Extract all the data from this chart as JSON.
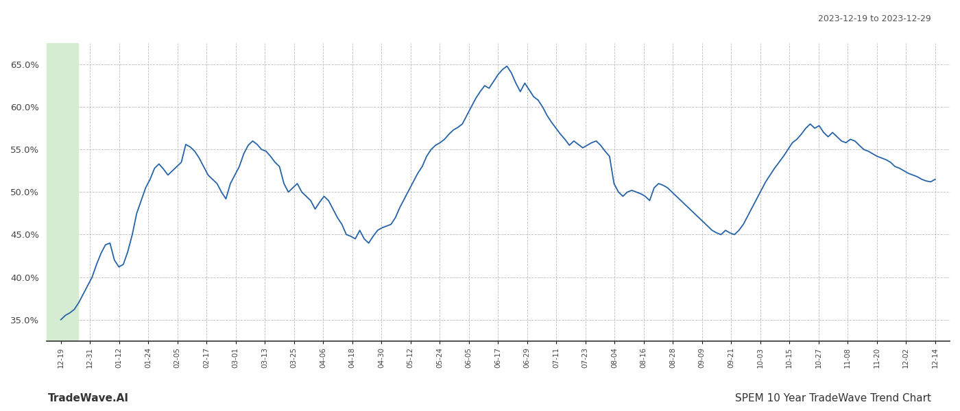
{
  "title_right": "2023-12-19 to 2023-12-29",
  "footer_left": "TradeWave.AI",
  "footer_right": "SPEM 10 Year TradeWave Trend Chart",
  "ylim": [
    0.325,
    0.675
  ],
  "yticks": [
    0.35,
    0.4,
    0.45,
    0.5,
    0.55,
    0.6,
    0.65
  ],
  "line_color": "#2563a8",
  "highlight_color": "#d6ecd2",
  "grid_color": "#bbbbbb",
  "background_color": "#ffffff",
  "x_labels": [
    "12-19",
    "12-31",
    "01-12",
    "01-24",
    "02-05",
    "02-17",
    "03-01",
    "03-13",
    "03-25",
    "04-06",
    "04-18",
    "04-30",
    "05-12",
    "05-24",
    "06-05",
    "06-17",
    "06-29",
    "07-11",
    "07-23",
    "08-04",
    "08-16",
    "08-28",
    "09-09",
    "09-21",
    "10-03",
    "10-15",
    "10-27",
    "11-08",
    "11-20",
    "12-02",
    "12-14"
  ],
  "values": [
    0.35,
    0.355,
    0.358,
    0.362,
    0.37,
    0.38,
    0.39,
    0.4,
    0.415,
    0.428,
    0.438,
    0.44,
    0.42,
    0.412,
    0.415,
    0.43,
    0.45,
    0.475,
    0.49,
    0.505,
    0.515,
    0.528,
    0.533,
    0.527,
    0.52,
    0.525,
    0.53,
    0.535,
    0.556,
    0.553,
    0.548,
    0.54,
    0.53,
    0.52,
    0.515,
    0.51,
    0.5,
    0.492,
    0.51,
    0.52,
    0.53,
    0.545,
    0.555,
    0.56,
    0.556,
    0.55,
    0.548,
    0.542,
    0.535,
    0.53,
    0.51,
    0.5,
    0.505,
    0.51,
    0.5,
    0.495,
    0.49,
    0.48,
    0.488,
    0.495,
    0.49,
    0.48,
    0.47,
    0.462,
    0.45,
    0.448,
    0.445,
    0.455,
    0.445,
    0.44,
    0.448,
    0.455,
    0.458,
    0.46,
    0.462,
    0.47,
    0.482,
    0.492,
    0.502,
    0.512,
    0.522,
    0.53,
    0.542,
    0.55,
    0.555,
    0.558,
    0.562,
    0.568,
    0.573,
    0.576,
    0.58,
    0.59,
    0.6,
    0.61,
    0.618,
    0.625,
    0.622,
    0.63,
    0.638,
    0.644,
    0.648,
    0.64,
    0.628,
    0.618,
    0.628,
    0.62,
    0.612,
    0.608,
    0.6,
    0.59,
    0.582,
    0.575,
    0.568,
    0.562,
    0.555,
    0.56,
    0.556,
    0.552,
    0.555,
    0.558,
    0.56,
    0.555,
    0.548,
    0.542,
    0.51,
    0.5,
    0.495,
    0.5,
    0.502,
    0.5,
    0.498,
    0.495,
    0.49,
    0.505,
    0.51,
    0.508,
    0.505,
    0.5,
    0.495,
    0.49,
    0.485,
    0.48,
    0.475,
    0.47,
    0.465,
    0.46,
    0.455,
    0.452,
    0.45,
    0.455,
    0.452,
    0.45,
    0.455,
    0.462,
    0.472,
    0.482,
    0.492,
    0.502,
    0.512,
    0.52,
    0.528,
    0.535,
    0.542,
    0.55,
    0.558,
    0.562,
    0.568,
    0.575,
    0.58,
    0.575,
    0.578,
    0.57,
    0.565,
    0.57,
    0.565,
    0.56,
    0.558,
    0.562,
    0.56,
    0.555,
    0.55,
    0.548,
    0.545,
    0.542,
    0.54,
    0.538,
    0.535,
    0.53,
    0.528,
    0.525,
    0.522,
    0.52,
    0.518,
    0.515,
    0.513,
    0.512,
    0.515
  ],
  "highlight_n_points": 10
}
